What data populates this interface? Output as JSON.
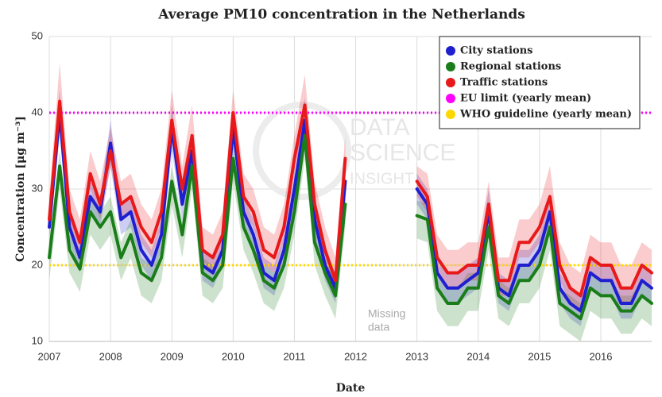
{
  "chart_data": {
    "type": "line",
    "title": "Average PM10 concentration in the Netherlands",
    "x_label": "Date",
    "y_label": "Concentration [μg m⁻³]",
    "annotation": [
      "Missing",
      "data"
    ],
    "watermark": [
      "DATA",
      "SCIENCE",
      "INSIGHT"
    ],
    "xlim": [
      2007,
      2016.83
    ],
    "xticks": [
      2007,
      2008,
      2009,
      2010,
      2011,
      2012,
      2013,
      2014,
      2015,
      2016
    ],
    "ylim": [
      10,
      50
    ],
    "yticks": [
      10,
      20,
      30,
      40,
      50
    ],
    "grid": true,
    "legend": "upper right",
    "x": [
      2007,
      2007.17,
      2007.33,
      2007.5,
      2007.67,
      2007.83,
      2008,
      2008.17,
      2008.33,
      2008.5,
      2008.67,
      2008.83,
      2009,
      2009.17,
      2009.33,
      2009.5,
      2009.67,
      2009.83,
      2010,
      2010.17,
      2010.33,
      2010.5,
      2010.67,
      2010.83,
      2011,
      2011.17,
      2011.33,
      2011.5,
      2011.67,
      2011.83,
      2012,
      2012.17,
      2012.33,
      2012.5,
      2012.67,
      2012.83,
      2013,
      2013.17,
      2013.33,
      2013.5,
      2013.67,
      2013.83,
      2014,
      2014.17,
      2014.33,
      2014.5,
      2014.67,
      2014.83,
      2015,
      2015.17,
      2015.33,
      2015.5,
      2015.67,
      2015.83,
      2016,
      2016.17,
      2016.33,
      2016.5,
      2016.67,
      2016.83
    ],
    "series": [
      {
        "name": "City stations",
        "color": "#1f1fd0",
        "values": [
          25,
          40,
          25,
          21,
          29,
          27,
          36,
          26,
          27,
          22,
          20,
          24,
          38,
          28,
          35,
          20,
          19,
          22,
          38,
          27,
          24,
          19,
          18,
          22,
          30,
          39,
          26,
          20,
          17,
          31,
          null,
          null,
          null,
          null,
          null,
          null,
          30,
          28,
          19,
          17,
          17,
          18,
          19,
          27,
          17,
          16,
          20,
          20,
          22,
          27,
          17,
          15,
          14,
          19,
          18,
          18,
          15,
          15,
          18,
          17
        ],
        "upper": [
          27,
          43,
          27,
          23,
          31,
          29,
          39,
          28,
          29,
          24,
          22,
          26,
          41,
          30,
          37,
          22,
          21,
          24,
          40,
          29,
          26,
          21,
          20,
          24,
          32,
          42,
          28,
          22,
          19,
          33,
          null,
          null,
          null,
          null,
          null,
          null,
          32,
          30,
          21,
          19,
          19,
          20,
          21,
          30,
          19,
          18,
          22,
          22,
          24,
          29,
          19,
          17,
          16,
          21,
          20,
          20,
          17,
          17,
          20,
          19
        ],
        "lower": [
          23,
          37,
          23,
          19,
          27,
          25,
          33,
          24,
          25,
          20,
          18,
          22,
          35,
          26,
          33,
          18,
          17,
          20,
          36,
          25,
          22,
          17,
          16,
          20,
          28,
          36,
          24,
          18,
          15,
          29,
          null,
          null,
          null,
          null,
          null,
          null,
          28,
          26,
          17,
          15,
          15,
          16,
          17,
          25,
          15,
          14,
          18,
          18,
          20,
          25,
          15,
          13,
          12,
          17,
          16,
          16,
          13,
          13,
          16,
          15
        ]
      },
      {
        "name": "Regional stations",
        "color": "#1a7d1a",
        "values": [
          21,
          33,
          22,
          19.5,
          27,
          25,
          27,
          21,
          24,
          19,
          18,
          21,
          31,
          24,
          33,
          19,
          18,
          20,
          34,
          25,
          22,
          18,
          17,
          20,
          27,
          37,
          23,
          19,
          16,
          28,
          null,
          null,
          null,
          null,
          null,
          null,
          26.5,
          26,
          17,
          15,
          15,
          17,
          17,
          25,
          16,
          15,
          18,
          18,
          20,
          25,
          15,
          14,
          13,
          17,
          16,
          16,
          14,
          14,
          16,
          15
        ],
        "upper": [
          23,
          35,
          24,
          21.5,
          29,
          27,
          29,
          23,
          26,
          21,
          20,
          23,
          33,
          26,
          35,
          21,
          20,
          22,
          36,
          27,
          24,
          20,
          19,
          22,
          29,
          39,
          25,
          21,
          18,
          30,
          null,
          null,
          null,
          null,
          null,
          null,
          28.5,
          28,
          19,
          17,
          17,
          19,
          19,
          27,
          18,
          17,
          20,
          20,
          22,
          27,
          17,
          16,
          15,
          19,
          18,
          18,
          16,
          16,
          18,
          17
        ],
        "lower": [
          18,
          30,
          19,
          16.5,
          24,
          22,
          24,
          18,
          21,
          16,
          15,
          18,
          28,
          21,
          30,
          16,
          15,
          17,
          31,
          22,
          19,
          15,
          14,
          17,
          24,
          34,
          20,
          16,
          13,
          25,
          null,
          null,
          null,
          null,
          null,
          null,
          23.5,
          23,
          14,
          12,
          12,
          14,
          14,
          22,
          13,
          12,
          15,
          15,
          17,
          22,
          12,
          11,
          10,
          14,
          13,
          13,
          11,
          11,
          13,
          12
        ]
      },
      {
        "name": "Traffic stations",
        "color": "#e8191b",
        "values": [
          26,
          41.5,
          27,
          23,
          32,
          28,
          35,
          28,
          29,
          25,
          23,
          27,
          39,
          30,
          37,
          22,
          21,
          24,
          40,
          29,
          27,
          22,
          21,
          25,
          34,
          41,
          28,
          22,
          18,
          34,
          null,
          null,
          null,
          null,
          null,
          null,
          31,
          29,
          21,
          19,
          19,
          20,
          20,
          28,
          18,
          18,
          23,
          23,
          25,
          29,
          20,
          17,
          16,
          21,
          20,
          20,
          17,
          17,
          20,
          19
        ],
        "upper": [
          29,
          46.5,
          30,
          26,
          35,
          31,
          38,
          31,
          32,
          28,
          26,
          30,
          43,
          33,
          41,
          25,
          24,
          27,
          43,
          32,
          30,
          25,
          24,
          28,
          37,
          45,
          31,
          25,
          21,
          37,
          null,
          null,
          null,
          null,
          null,
          null,
          33,
          32,
          24,
          22,
          22,
          23,
          23,
          31,
          21,
          21,
          26,
          26,
          28,
          33,
          23,
          20,
          19,
          24,
          23,
          23,
          20,
          20,
          23,
          22
        ],
        "lower": [
          24,
          39.5,
          25,
          21,
          30,
          26,
          33,
          26,
          27,
          23,
          21,
          25,
          37,
          28,
          35,
          20,
          19,
          22,
          38,
          27,
          25,
          20,
          19,
          23,
          32,
          39,
          26,
          20,
          16,
          32,
          null,
          null,
          null,
          null,
          null,
          null,
          29,
          27,
          19,
          17,
          17,
          18,
          18,
          26,
          16,
          16,
          21,
          21,
          23,
          27,
          18,
          15,
          14,
          19,
          18,
          18,
          15,
          15,
          18,
          17
        ]
      }
    ],
    "reference_lines": [
      {
        "name": "EU limit (yearly mean)",
        "color": "#ff00ff",
        "value": 40
      },
      {
        "name": "WHO guideline (yearly mean)",
        "color": "#ffd700",
        "value": 20
      }
    ]
  }
}
